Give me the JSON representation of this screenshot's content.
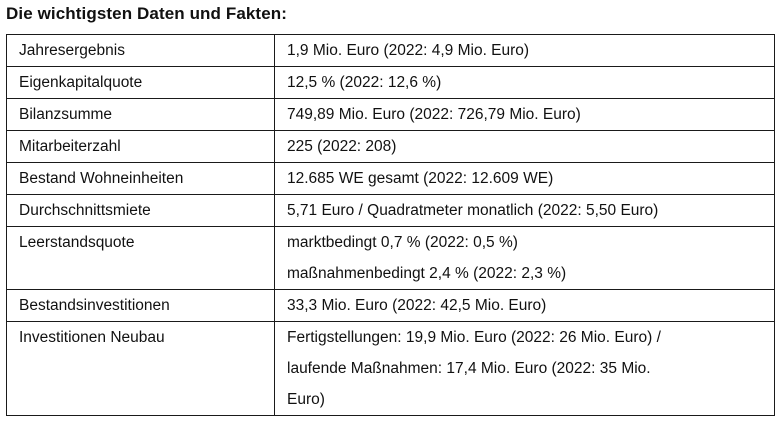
{
  "heading": "Die wichtigsten Daten und Fakten:",
  "rows": [
    {
      "label": "Jahresergebnis",
      "lines": [
        "1,9 Mio. Euro (2022: 4,9 Mio. Euro)"
      ]
    },
    {
      "label": "Eigenkapitalquote",
      "lines": [
        "12,5 % (2022: 12,6 %)"
      ]
    },
    {
      "label": "Bilanzsumme",
      "lines": [
        "749,89 Mio. Euro (2022: 726,79 Mio. Euro)"
      ]
    },
    {
      "label": "Mitarbeiterzahl",
      "lines": [
        "225 (2022: 208)"
      ]
    },
    {
      "label": "Bestand Wohneinheiten",
      "lines": [
        "12.685 WE gesamt (2022: 12.609 WE)"
      ]
    },
    {
      "label": "Durchschnittsmiete",
      "lines": [
        "5,71 Euro / Quadratmeter monatlich (2022: 5,50 Euro)"
      ]
    },
    {
      "label": "Leerstandsquote",
      "lines": [
        "marktbedingt 0,7 % (2022: 0,5 %)",
        "maßnahmenbedingt 2,4 % (2022: 2,3 %)"
      ]
    },
    {
      "label": "Bestandsinvestitionen",
      "lines": [
        "33,3 Mio. Euro (2022: 42,5 Mio. Euro)"
      ]
    },
    {
      "label": "Investitionen Neubau",
      "lines": [
        "Fertigstellungen: 19,9 Mio. Euro (2022: 26 Mio. Euro) /",
        "laufende Maßnahmen: 17,4 Mio. Euro (2022: 35 Mio.",
        "Euro)"
      ]
    }
  ]
}
